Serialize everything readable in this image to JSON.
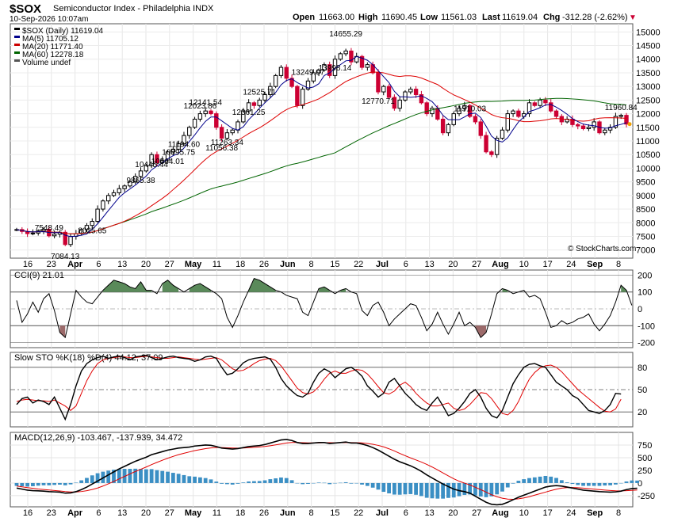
{
  "header": {
    "symbol": "$SOX",
    "name": "Semiconductor Index - Philadelphia INDX",
    "date": "10-Sep-2026 10:07am",
    "open_label": "Open",
    "open": "11663.00",
    "high_label": "High",
    "high": "11690.45",
    "low_label": "Low",
    "low": "11561.03",
    "last_label": "Last",
    "last": "11619.04",
    "chg_label": "Chg",
    "chg": "-312.28 (-2.62%)",
    "watermark": "© StockCharts.com"
  },
  "legend": [
    {
      "text": "$SOX (Daily) 11619.04",
      "color": "#000000"
    },
    {
      "text": "MA(5) 11705.12",
      "color": "#00008b"
    },
    {
      "text": "MA(20) 11771.40",
      "color": "#cc0000"
    },
    {
      "text": "MA(60) 12278.18",
      "color": "#006400"
    },
    {
      "text": "Volume undef",
      "color": "#555555"
    }
  ],
  "colors": {
    "up": "#000000",
    "down": "#cc0033",
    "ma5": "#00008b",
    "ma20": "#dd0000",
    "ma60": "#006400",
    "cci_fill": "#5a8a5a",
    "cci_neg_fill": "#9c6a6a",
    "macd_hist": "#3b8fc4",
    "signal": "#e00000"
  },
  "chart_data": [
    {
      "type": "candlestick",
      "title": "$SOX (Daily)",
      "ylim": [
        6700,
        15300
      ],
      "y_ticks": [
        7000,
        7500,
        8000,
        8500,
        9000,
        9500,
        10000,
        10500,
        11000,
        11500,
        12000,
        12500,
        13000,
        13500,
        14000,
        14500,
        15000
      ],
      "x_tick_labels": [
        "16",
        "23",
        "Apr",
        "6",
        "13",
        "20",
        "27",
        "May",
        "11",
        "18",
        "26",
        "Jun",
        "8",
        "15",
        "22",
        "Jul",
        "6",
        "13",
        "20",
        "27",
        "Aug",
        "10",
        "17",
        "24",
        "Sep",
        "8"
      ],
      "close": [
        7750,
        7680,
        7600,
        7620,
        7700,
        7760,
        7520,
        7580,
        7650,
        7200,
        7500,
        7600,
        7750,
        7900,
        8050,
        8500,
        8800,
        9000,
        9100,
        9250,
        9350,
        9500,
        9700,
        9900,
        10100,
        10500,
        10200,
        10300,
        10600,
        10700,
        10900,
        11200,
        11500,
        11800,
        12000,
        12100,
        12000,
        11500,
        11100,
        11300,
        11400,
        11700,
        12100,
        12400,
        12300,
        12500,
        12700,
        13000,
        13400,
        13700,
        13300,
        13000,
        12300,
        12900,
        13200,
        13500,
        13600,
        13800,
        13400,
        14000,
        14200,
        14300,
        13900,
        14100,
        13700,
        13800,
        13500,
        12800,
        13000,
        12600,
        12200,
        12500,
        12800,
        12900,
        12700,
        12400,
        12000,
        12200,
        11800,
        11300,
        11600,
        12000,
        12200,
        12300,
        11900,
        11700,
        11200,
        10600,
        10500,
        11100,
        11400,
        12000,
        12100,
        11900,
        12000,
        12400,
        12300,
        12500,
        12400,
        12100,
        11900,
        11700,
        11800,
        11600,
        11550,
        11450,
        11500,
        11700,
        11300,
        11400,
        11500,
        11900,
        11940,
        11619
      ],
      "annotations": [
        {
          "label": "8025.65",
          "value": 8025.65
        },
        {
          "label": "7548.49",
          "value": 7548.49
        },
        {
          "label": "7084.13",
          "value": 7084.13
        },
        {
          "label": "10564.01",
          "value": 10564.01
        },
        {
          "label": "9865.38",
          "value": 9865.38
        },
        {
          "label": "12141.54",
          "value": 12141.54
        },
        {
          "label": "10895.75",
          "value": 10895.75
        },
        {
          "label": "13998.14",
          "value": 13998.14
        },
        {
          "label": "14655.29",
          "value": 14655.29
        },
        {
          "label": "13249.07",
          "value": 13249.07
        },
        {
          "label": "11960.84",
          "value": 11960.84
        },
        {
          "label": "12525.71",
          "value": 12525.71
        },
        {
          "label": "11194.60",
          "value": 11194.6
        },
        {
          "label": "12361.25",
          "value": 12361.25
        },
        {
          "label": "10445.44",
          "value": 10445.44
        },
        {
          "label": "12770.71",
          "value": 12770.71
        },
        {
          "label": "11910.03",
          "value": 11910.03
        },
        {
          "label": "11263.34",
          "value": 11263.34
        },
        {
          "label": "12023.86",
          "value": 12023.86
        },
        {
          "label": "11056.38",
          "value": 11056.38
        }
      ]
    },
    {
      "type": "line",
      "title": "CCI(9) 21.01",
      "ylim": [
        -230,
        230
      ],
      "y_ticks": [
        200,
        100,
        0,
        -100,
        -200
      ],
      "values": [
        50,
        -80,
        -30,
        40,
        -20,
        60,
        90,
        -10,
        -140,
        -170,
        -30,
        110,
        70,
        40,
        30,
        70,
        110,
        140,
        170,
        160,
        150,
        130,
        120,
        160,
        110,
        110,
        90,
        150,
        170,
        140,
        120,
        100,
        120,
        140,
        150,
        130,
        110,
        90,
        60,
        -50,
        -110,
        -40,
        40,
        110,
        180,
        170,
        150,
        130,
        110,
        100,
        80,
        70,
        60,
        -20,
        -40,
        40,
        120,
        130,
        110,
        90,
        110,
        120,
        100,
        90,
        -10,
        -40,
        20,
        40,
        -20,
        -100,
        -60,
        -30,
        0,
        30,
        20,
        -50,
        -130,
        -90,
        -20,
        -90,
        -150,
        -90,
        -20,
        -100,
        -80,
        -110,
        -170,
        -140,
        -30,
        90,
        120,
        110,
        90,
        100,
        110,
        70,
        80,
        60,
        -20,
        -110,
        -100,
        -70,
        -90,
        -80,
        -60,
        -50,
        -30,
        -90,
        -130,
        -90,
        -40,
        40,
        140,
        110,
        21
      ],
      "series_name": "CCI(9)"
    },
    {
      "type": "line",
      "title": "Slow STO %K(18) %D(4) 44.12, 37.09",
      "ylim": [
        0,
        100
      ],
      "y_ticks": [
        80,
        50,
        20
      ],
      "series": [
        {
          "name": "%K(18)",
          "values": [
            30,
            38,
            40,
            32,
            36,
            34,
            30,
            40,
            25,
            10,
            30,
            55,
            75,
            85,
            90,
            93,
            95,
            92,
            94,
            95,
            93,
            90,
            94,
            95,
            96,
            93,
            90,
            92,
            94,
            95,
            93,
            92,
            91,
            88,
            90,
            94,
            95,
            92,
            80,
            70,
            72,
            78,
            86,
            90,
            92,
            93,
            94,
            91,
            80,
            65,
            55,
            48,
            42,
            40,
            45,
            60,
            72,
            78,
            74,
            66,
            72,
            78,
            80,
            75,
            68,
            55,
            48,
            40,
            45,
            60,
            65,
            55,
            45,
            38,
            30,
            25,
            22,
            32,
            40,
            28,
            15,
            18,
            25,
            34,
            45,
            50,
            40,
            25,
            15,
            12,
            22,
            40,
            58,
            70,
            80,
            84,
            85,
            82,
            80,
            70,
            60,
            55,
            50,
            42,
            38,
            30,
            22,
            20,
            18,
            22,
            30,
            45,
            44.12
          ]
        },
        {
          "name": "%D(4)",
          "values": [
            34,
            36,
            37,
            36,
            35,
            35,
            34,
            36,
            32,
            28,
            22,
            28,
            45,
            62,
            75,
            85,
            90,
            92,
            93,
            94,
            94,
            93,
            93,
            94,
            95,
            94,
            93,
            92,
            92,
            93,
            94,
            93,
            92,
            91,
            90,
            91,
            92,
            93,
            90,
            84,
            78,
            75,
            76,
            80,
            85,
            89,
            91,
            92,
            89,
            82,
            72,
            62,
            52,
            46,
            44,
            47,
            54,
            64,
            72,
            75,
            72,
            72,
            75,
            77,
            76,
            71,
            63,
            54,
            46,
            44,
            48,
            56,
            60,
            54,
            45,
            38,
            32,
            28,
            28,
            30,
            32,
            25,
            22,
            24,
            30,
            38,
            46,
            45,
            38,
            28,
            18,
            16,
            22,
            34,
            50,
            64,
            73,
            79,
            82,
            83,
            80,
            74,
            66,
            58,
            50,
            44,
            38,
            32,
            26,
            21,
            20,
            24,
            37.09
          ]
        }
      ]
    },
    {
      "type": "line",
      "title": "MACD(12,26,9) -103.467, -137.939, 34.472",
      "ylim": [
        -470,
        1000
      ],
      "y_ticks": [
        750,
        500,
        250,
        0,
        -250
      ],
      "series": [
        {
          "name": "MACD(12,26,9)",
          "values": [
            -100,
            -120,
            -140,
            -150,
            -155,
            -160,
            -170,
            -175,
            -180,
            -200,
            -195,
            -170,
            -130,
            -80,
            -20,
            40,
            100,
            160,
            220,
            280,
            330,
            380,
            430,
            470,
            510,
            560,
            590,
            620,
            650,
            670,
            690,
            700,
            710,
            730,
            740,
            750,
            745,
            720,
            690,
            680,
            670,
            680,
            700,
            720,
            730,
            740,
            760,
            790,
            820,
            850,
            860,
            840,
            800,
            780,
            780,
            790,
            800,
            800,
            780,
            790,
            800,
            810,
            790,
            790,
            770,
            740,
            700,
            650,
            590,
            530,
            470,
            420,
            380,
            340,
            290,
            230,
            160,
            100,
            40,
            -20,
            -70,
            -120,
            -150,
            -170,
            -200,
            -260,
            -320,
            -380,
            -420,
            -430,
            -420,
            -380,
            -330,
            -280,
            -240,
            -200,
            -160,
            -120,
            -80,
            -60,
            -50,
            -60,
            -80,
            -100,
            -120,
            -140,
            -150,
            -160,
            -170,
            -175,
            -180,
            -175,
            -160,
            -130,
            -110,
            -103.467
          ]
        },
        {
          "name": "signal",
          "values": [
            -60,
            -75,
            -90,
            -105,
            -118,
            -128,
            -138,
            -148,
            -157,
            -168,
            -176,
            -176,
            -168,
            -152,
            -128,
            -98,
            -60,
            -15,
            32,
            82,
            130,
            180,
            228,
            272,
            316,
            364,
            408,
            450,
            490,
            526,
            560,
            588,
            614,
            640,
            660,
            680,
            694,
            700,
            700,
            696,
            692,
            690,
            692,
            698,
            704,
            712,
            722,
            736,
            754,
            772,
            790,
            800,
            800,
            796,
            792,
            792,
            793,
            796,
            796,
            795,
            796,
            799,
            798,
            796,
            792,
            781,
            765,
            743,
            714,
            676,
            633,
            585,
            540,
            496,
            456,
            414,
            368,
            316,
            260,
            200,
            140,
            84,
            36,
            -2,
            -38,
            -84,
            -130,
            -180,
            -232,
            -270,
            -300,
            -318,
            -322,
            -312,
            -294,
            -270,
            -240,
            -210,
            -180,
            -150,
            -122,
            -100,
            -90,
            -88,
            -92,
            -100,
            -110,
            -120,
            -130,
            -140,
            -148,
            -154,
            -156,
            -152,
            -146,
            -137.939
          ]
        }
      ]
    }
  ]
}
